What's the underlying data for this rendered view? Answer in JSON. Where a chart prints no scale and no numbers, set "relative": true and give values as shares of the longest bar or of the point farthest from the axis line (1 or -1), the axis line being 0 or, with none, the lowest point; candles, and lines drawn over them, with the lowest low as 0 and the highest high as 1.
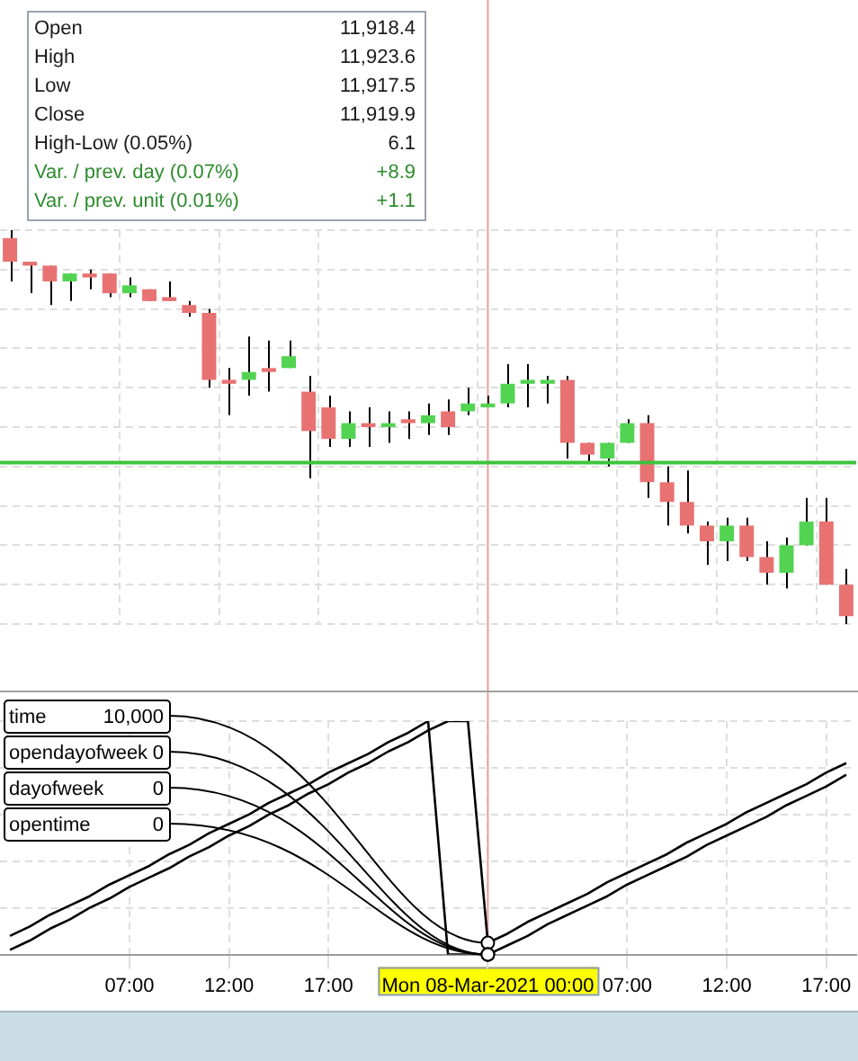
{
  "chart_data": [
    {
      "type": "candlestick",
      "relative": true,
      "grid": true,
      "tick_labels": false,
      "categories": [
        null,
        null,
        null,
        null,
        null,
        null,
        "07:00",
        null,
        null,
        null,
        null,
        "12:00",
        null,
        null,
        null,
        null,
        "17:00",
        null,
        null,
        null,
        null,
        null,
        null,
        null,
        "Mon 08-Mar-2021 00:00",
        null,
        null,
        null,
        null,
        null,
        null,
        "07:00",
        null,
        null,
        null,
        null,
        "12:00",
        null,
        null,
        null,
        null,
        "17:00",
        null
      ],
      "ohlc": [
        [
          0.98,
          1,
          0.87,
          0.92
        ],
        [
          0.92,
          0.92,
          0.84,
          0.91
        ],
        [
          0.91,
          0.91,
          0.81,
          0.87
        ],
        [
          0.87,
          0.89,
          0.82,
          0.89
        ],
        [
          0.89,
          0.9,
          0.85,
          0.88
        ],
        [
          0.89,
          0.89,
          0.83,
          0.84
        ],
        [
          0.84,
          0.88,
          0.83,
          0.86
        ],
        [
          0.85,
          0.85,
          0.82,
          0.82
        ],
        [
          0.83,
          0.87,
          0.82,
          0.82
        ],
        [
          0.81,
          0.82,
          0.78,
          0.79
        ],
        [
          0.79,
          0.8,
          0.6,
          0.62
        ],
        [
          0.62,
          0.65,
          0.53,
          0.61
        ],
        [
          0.62,
          0.73,
          0.58,
          0.64
        ],
        [
          0.65,
          0.72,
          0.59,
          0.64
        ],
        [
          0.65,
          0.72,
          0.65,
          0.68
        ],
        [
          0.59,
          0.63,
          0.37,
          0.49
        ],
        [
          0.55,
          0.58,
          0.45,
          0.47
        ],
        [
          0.47,
          0.54,
          0.45,
          0.51
        ],
        [
          0.51,
          0.55,
          0.45,
          0.5
        ],
        [
          0.5,
          0.54,
          0.46,
          0.51
        ],
        [
          0.52,
          0.54,
          0.47,
          0.51
        ],
        [
          0.51,
          0.56,
          0.48,
          0.53
        ],
        [
          0.54,
          0.57,
          0.48,
          0.5
        ],
        [
          0.54,
          0.6,
          0.53,
          0.56
        ],
        [
          0.55,
          0.58,
          0.55,
          0.56
        ],
        [
          0.56,
          0.66,
          0.55,
          0.61
        ],
        [
          0.61,
          0.66,
          0.55,
          0.62
        ],
        [
          0.61,
          0.63,
          0.56,
          0.62
        ],
        [
          0.62,
          0.63,
          0.42,
          0.46
        ],
        [
          0.46,
          0.46,
          0.41,
          0.43
        ],
        [
          0.42,
          0.46,
          0.4,
          0.46
        ],
        [
          0.46,
          0.52,
          0.46,
          0.51
        ],
        [
          0.51,
          0.53,
          0.32,
          0.36
        ],
        [
          0.36,
          0.4,
          0.25,
          0.31
        ],
        [
          0.31,
          0.39,
          0.23,
          0.25
        ],
        [
          0.25,
          0.26,
          0.15,
          0.21
        ],
        [
          0.21,
          0.27,
          0.16,
          0.25
        ],
        [
          0.25,
          0.27,
          0.16,
          0.17
        ],
        [
          0.17,
          0.21,
          0.1,
          0.13
        ],
        [
          0.13,
          0.22,
          0.09,
          0.2
        ],
        [
          0.2,
          0.32,
          0.2,
          0.26
        ],
        [
          0.26,
          0.32,
          0.1,
          0.1
        ],
        [
          0.1,
          0.14,
          0,
          0.02
        ]
      ],
      "colors": [
        "#e87272",
        "#e87272",
        "#e87272",
        "#52d452",
        "#e87272",
        "#e87272",
        "#52d452",
        "#e87272",
        "#e87272",
        "#e87272",
        "#e87272",
        "#e87272",
        "#52d452",
        "#e87272",
        "#52d452",
        "#e87272",
        "#e87272",
        "#52d452",
        "#e87272",
        "#52d452",
        "#e87272",
        "#52d452",
        "#e87272",
        "#52d452",
        "#52d452",
        "#52d452",
        "#52d452",
        "#52d452",
        "#e87272",
        "#e87272",
        "#52d452",
        "#52d452",
        "#e87272",
        "#e87272",
        "#e87272",
        "#e87272",
        "#52d452",
        "#e87272",
        "#e87272",
        "#52d452",
        "#52d452",
        "#e87272",
        "#e87272"
      ],
      "ref_lines": [
        {
          "axis": "y",
          "value": 0.41,
          "color": "#3cc43c"
        },
        {
          "axis": "x",
          "value": "Mon 08-Mar-2021 00:00",
          "color": "#e8a0a0"
        }
      ],
      "annotations": [
        "Open",
        "11,918.4",
        "High",
        "11,923.6",
        "Low",
        "11,917.5",
        "Close",
        "11,919.9",
        "High-Low (0.05%)",
        "6.1",
        "Var. / prev. day (0.07%)",
        "+8.9",
        "Var. / prev. unit (0.01%)",
        "+1.1"
      ]
    },
    {
      "type": "line",
      "relative": true,
      "grid": true,
      "categories": [
        null,
        null,
        null,
        null,
        null,
        null,
        "07:00",
        null,
        null,
        null,
        null,
        "12:00",
        null,
        null,
        null,
        null,
        "17:00",
        null,
        null,
        null,
        null,
        null,
        null,
        null,
        "Mon 08-Mar-2021 00:00",
        null,
        null,
        null,
        null,
        null,
        null,
        "07:00",
        null,
        null,
        null,
        null,
        "12:00",
        null,
        null,
        null,
        null,
        "17:00",
        null
      ],
      "series": [
        {
          "color": "#000000",
          "values": [
            0.02,
            0.06,
            0.11,
            0.15,
            0.2,
            0.24,
            0.29,
            0.33,
            0.37,
            0.42,
            0.46,
            0.51,
            0.55,
            0.6,
            0.64,
            0.69,
            0.73,
            0.78,
            0.82,
            0.87,
            0.91,
            0.96,
            1,
            1,
            0.05,
            0.09,
            0.14,
            0.18,
            0.22,
            0.26,
            0.31,
            0.35,
            0.39,
            0.43,
            0.48,
            0.52,
            0.56,
            0.61,
            0.65,
            0.69,
            0.73,
            0.78,
            0.82
          ]
        },
        {
          "color": "#000000",
          "values": [
            0.08,
            0.12,
            0.17,
            0.21,
            0.25,
            0.3,
            0.34,
            0.38,
            0.43,
            0.47,
            0.52,
            0.56,
            0.6,
            0.65,
            0.69,
            0.73,
            0.78,
            0.82,
            0.86,
            0.91,
            0.95,
            1,
            0,
            0,
            0,
            0.04,
            0.08,
            0.13,
            0.17,
            0.21,
            0.25,
            0.3,
            0.34,
            0.38,
            0.42,
            0.47,
            0.51,
            0.55,
            0.59,
            0.64,
            0.68,
            0.72,
            0.77
          ]
        }
      ],
      "annotations": [
        "time",
        "10,000",
        "opendayofweek",
        "0",
        "dayofweek",
        "0",
        "opentime",
        "0"
      ],
      "ref_lines": [
        {
          "axis": "x",
          "value": "Mon 08-Mar-2021 00:00",
          "color": "#e8a0a0"
        }
      ]
    }
  ]
}
